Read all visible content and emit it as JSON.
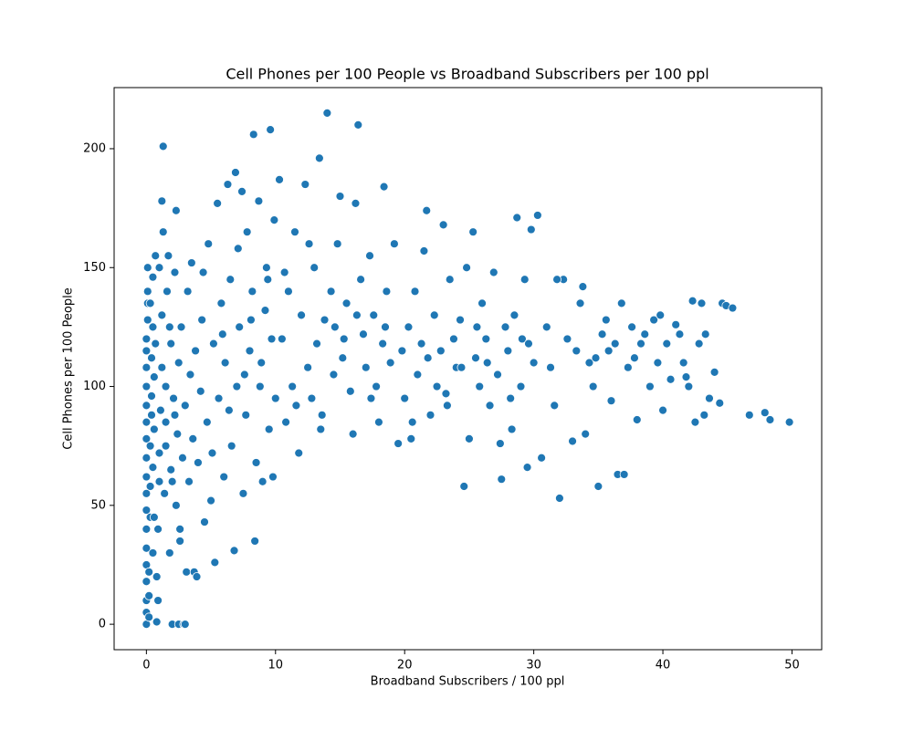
{
  "chart_data": {
    "type": "scatter",
    "title": "Cell Phones per 100 People vs Broadband Subscribers per 100 ppl",
    "x_label": "Broadband Subscribers / 100 ppl",
    "y_label": "Cell Phones per 100 People",
    "color": "#1f77b4",
    "xlim": [
      -2.5,
      52.3
    ],
    "ylim": [
      -10.7,
      225.7
    ],
    "xticks": [
      0,
      10,
      20,
      30,
      40,
      50
    ],
    "yticks": [
      0,
      50,
      100,
      150,
      200
    ],
    "grid": false,
    "x": [
      0,
      0,
      0,
      0,
      0,
      0,
      0,
      0,
      0,
      0,
      0,
      0,
      0,
      0,
      0,
      0,
      0,
      0,
      0.1,
      0.1,
      0.1,
      0.1,
      0.2,
      0.2,
      0.2,
      0.3,
      0.3,
      0.3,
      0.4,
      0.4,
      0.4,
      0.5,
      0.5,
      0.5,
      0.5,
      0.6,
      0.6,
      0.7,
      0.7,
      0.8,
      0.8,
      0.9,
      1.0,
      1.0,
      1.1,
      1.2,
      1.2,
      1.3,
      1.3,
      1.4,
      1.5,
      1.5,
      1.6,
      1.7,
      1.8,
      1.9,
      1.9,
      2.0,
      2.1,
      2.2,
      2.3,
      2.3,
      2.4,
      2.5,
      2.5,
      2.6,
      2.7,
      2.8,
      2.9,
      3.0,
      3.0,
      3.1,
      3.2,
      3.3,
      3.4,
      3.5,
      3.6,
      3.7,
      3.8,
      3.9,
      1.2,
      0.3,
      0.6,
      1.0,
      1.8,
      2.2,
      2.6,
      0.9,
      1.5,
      2.0,
      4.0,
      4.2,
      4.3,
      4.5,
      4.7,
      4.8,
      5.0,
      5.2,
      5.3,
      5.5,
      5.6,
      5.8,
      6.0,
      6.1,
      6.3,
      6.5,
      6.6,
      6.8,
      6.9,
      7.0,
      7.2,
      7.4,
      7.5,
      7.7,
      7.8,
      8.0,
      8.2,
      8.3,
      8.4,
      8.5,
      8.7,
      8.8,
      9.0,
      9.2,
      9.3,
      9.5,
      9.6,
      9.7,
      9.9,
      10.0,
      4.4,
      5.1,
      5.9,
      6.4,
      7.1,
      7.6,
      8.1,
      8.9,
      9.4,
      9.8,
      10.3,
      10.5,
      10.8,
      11.0,
      11.3,
      11.5,
      11.8,
      12.0,
      12.3,
      12.5,
      12.8,
      13.0,
      13.2,
      13.4,
      13.6,
      13.8,
      14.0,
      14.3,
      14.5,
      14.8,
      15.0,
      15.2,
      15.5,
      15.8,
      16.0,
      16.2,
      16.4,
      16.6,
      16.8,
      17.0,
      17.3,
      17.6,
      17.8,
      18.0,
      18.3,
      18.4,
      18.6,
      18.9,
      19.2,
      19.5,
      10.7,
      11.6,
      12.6,
      13.5,
      14.6,
      15.3,
      16.3,
      17.4,
      18.5,
      19.8,
      20.0,
      20.3,
      20.5,
      20.8,
      21.0,
      21.3,
      21.5,
      21.7,
      22.0,
      22.3,
      22.5,
      22.8,
      23.0,
      23.3,
      23.5,
      23.8,
      24.0,
      24.3,
      24.6,
      24.8,
      25.0,
      25.3,
      25.5,
      25.8,
      26.0,
      26.3,
      26.6,
      26.9,
      27.2,
      27.5,
      27.8,
      28.0,
      28.3,
      28.5,
      28.7,
      29.0,
      29.3,
      29.5,
      29.8,
      30.0,
      20.6,
      21.8,
      23.2,
      24.4,
      25.6,
      26.4,
      27.4,
      28.2,
      29.1,
      29.6,
      30.3,
      30.6,
      31.0,
      31.3,
      31.6,
      32.0,
      32.3,
      32.6,
      33.0,
      33.3,
      33.6,
      34.0,
      34.3,
      34.6,
      35.0,
      35.3,
      35.6,
      36.0,
      36.3,
      36.5,
      37.0,
      37.3,
      37.6,
      38.0,
      38.3,
      38.6,
      39.0,
      39.3,
      39.6,
      40.0,
      40.3,
      40.6,
      41.0,
      41.3,
      41.6,
      42.0,
      42.3,
      42.5,
      42.8,
      43.0,
      43.3,
      43.6,
      44.0,
      44.4,
      44.6,
      44.9,
      45.4,
      46.7,
      47.9,
      48.3,
      49.8,
      31.8,
      33.8,
      35.8,
      37.8,
      39.8,
      41.8,
      43.2,
      34.8,
      36.8
    ],
    "values": [
      0,
      5,
      10,
      18,
      25,
      32,
      40,
      48,
      55,
      62,
      70,
      78,
      85,
      92,
      100,
      108,
      115,
      120,
      128,
      135,
      140,
      150,
      3,
      12,
      22,
      45,
      58,
      75,
      88,
      96,
      112,
      125,
      146,
      30,
      66,
      82,
      104,
      118,
      155,
      1,
      20,
      40,
      60,
      72,
      90,
      108,
      130,
      165,
      201,
      55,
      85,
      100,
      140,
      155,
      30,
      65,
      118,
      0,
      95,
      148,
      174,
      50,
      80,
      0,
      110,
      35,
      125,
      70,
      0,
      0,
      92,
      22,
      140,
      60,
      105,
      152,
      78,
      22,
      115,
      20,
      178,
      135,
      45,
      150,
      125,
      88,
      40,
      10,
      75,
      60,
      68,
      98,
      128,
      43,
      85,
      160,
      52,
      118,
      26,
      177,
      95,
      135,
      62,
      110,
      185,
      145,
      75,
      31,
      190,
      100,
      125,
      182,
      55,
      88,
      165,
      115,
      140,
      206,
      35,
      68,
      178,
      100,
      60,
      132,
      150,
      82,
      208,
      120,
      170,
      95,
      148,
      72,
      122,
      90,
      158,
      105,
      128,
      110,
      145,
      62,
      187,
      120,
      85,
      140,
      100,
      165,
      72,
      130,
      185,
      108,
      95,
      150,
      118,
      196,
      88,
      128,
      215,
      140,
      105,
      160,
      180,
      112,
      135,
      98,
      80,
      177,
      210,
      145,
      122,
      108,
      155,
      130,
      100,
      85,
      118,
      184,
      140,
      110,
      160,
      76,
      148,
      92,
      160,
      82,
      125,
      120,
      130,
      95,
      125,
      115,
      95,
      125,
      78,
      140,
      105,
      118,
      157,
      174,
      88,
      130,
      100,
      115,
      168,
      92,
      145,
      120,
      108,
      128,
      58,
      150,
      78,
      165,
      112,
      100,
      135,
      120,
      92,
      148,
      105,
      61,
      125,
      115,
      82,
      130,
      171,
      100,
      145,
      66,
      166,
      110,
      85,
      112,
      97,
      108,
      125,
      110,
      76,
      95,
      120,
      118,
      172,
      70,
      125,
      108,
      92,
      53,
      145,
      120,
      77,
      115,
      135,
      80,
      110,
      100,
      58,
      122,
      128,
      94,
      118,
      63,
      63,
      108,
      125,
      86,
      118,
      122,
      100,
      128,
      110,
      90,
      118,
      103,
      126,
      122,
      110,
      100,
      136,
      85,
      118,
      135,
      122,
      95,
      106,
      93,
      135,
      134,
      133,
      88,
      89,
      86,
      85,
      145,
      142,
      115,
      112,
      130,
      104,
      88,
      112,
      135
    ]
  }
}
